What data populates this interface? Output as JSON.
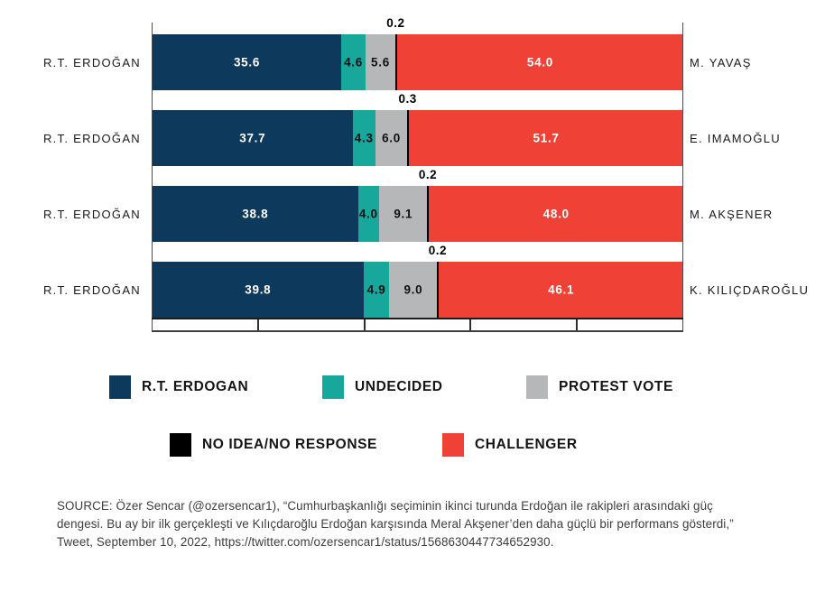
{
  "chart_data": {
    "type": "bar",
    "orientation": "horizontal",
    "stacked": true,
    "value_unit": "percent",
    "grid": false,
    "axis": {
      "min": 0,
      "max": 100,
      "ticks": [
        20,
        40,
        60,
        80
      ],
      "tick_labels_visible": false
    },
    "series": [
      {
        "key": "erdogan",
        "name": "R.T. ERDOGAN",
        "color": "#0D3A5C",
        "value_label_color": "#ffffff",
        "value_label_position": "inside"
      },
      {
        "key": "undecided",
        "name": "UNDECIDED",
        "color": "#17A79B",
        "value_label_color": "#111111",
        "value_label_position": "inside"
      },
      {
        "key": "protest",
        "name": "PROTEST VOTE",
        "color": "#B5B7B9",
        "value_label_color": "#111111",
        "value_label_position": "inside"
      },
      {
        "key": "no_idea",
        "name": "NO IDEA/NO RESPONSE",
        "color": "#000000",
        "value_label_color": "#000000",
        "value_label_position": "above"
      },
      {
        "key": "challenger",
        "name": "CHALLENGER",
        "color": "#EF4136",
        "value_label_color": "#ffffff",
        "value_label_position": "inside"
      }
    ],
    "rows": [
      {
        "left_label": "R.T. ERDOĞAN",
        "right_label": "M. YAVAŞ",
        "values": [
          35.6,
          4.6,
          5.6,
          0.2,
          54.0
        ]
      },
      {
        "left_label": "R.T. ERDOĞAN",
        "right_label": "E. IMAMOĞLU",
        "values": [
          37.7,
          4.3,
          6.0,
          0.3,
          51.7
        ]
      },
      {
        "left_label": "R.T. ERDOĞAN",
        "right_label": "M. AKŞENER",
        "values": [
          38.8,
          4.0,
          9.1,
          0.2,
          48.0
        ]
      },
      {
        "left_label": "R.T. ERDOĞAN",
        "right_label": "K. KILIÇDAROĞLU",
        "values": [
          39.8,
          4.9,
          9.0,
          0.2,
          46.1
        ]
      }
    ],
    "legend_position": "bottom"
  },
  "source": {
    "lines": [
      "SOURCE: Özer Sencar (@ozersencar1), “Cumhurbaşkanlığı seçiminin ikinci turunda Erdoğan ile rakipleri arasındaki güç",
      "dengesi. Bu ay bir ilk gerçekleşti ve Kılıçdaroğlu Erdoğan karşısında Meral Akşener’den daha güçlü bir performans gösterdi,”",
      "Tweet, September 10, 2022, https://twitter.com/ozersencar1/status/1568630447734652930."
    ]
  }
}
